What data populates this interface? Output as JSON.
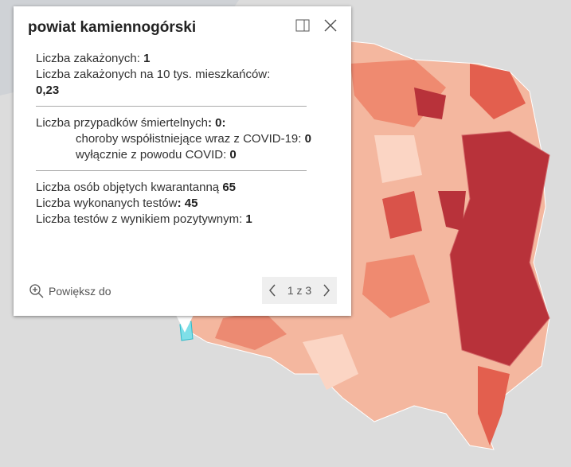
{
  "popup": {
    "title": "powiat kamiennogórski",
    "cases": {
      "label": "Liczba zakażonych: ",
      "value": "1"
    },
    "cases_per_10k": {
      "label": "Liczba zakażonych na 10 tys. mieszkańców:",
      "value": "0,23"
    },
    "deaths": {
      "label": "Liczba przypadków śmiertelnych",
      "value": ": 0:"
    },
    "deaths_comorbid": {
      "label": "choroby współistniejące wraz z COVID-19: ",
      "value": "0"
    },
    "deaths_covid_only": {
      "label": "wyłącznie z powodu COVID: ",
      "value": "0"
    },
    "quarantine": {
      "label": "Liczba osób objętych kwarantanną ",
      "value": "65"
    },
    "tests": {
      "label": "Liczba wykonanych testów",
      "value": ": 45"
    },
    "positive_tests": {
      "label": "Liczba testów z wynikiem pozytywnym: ",
      "value": "1"
    },
    "zoom_label": "Powiększ do",
    "pager": "1 z 3"
  }
}
